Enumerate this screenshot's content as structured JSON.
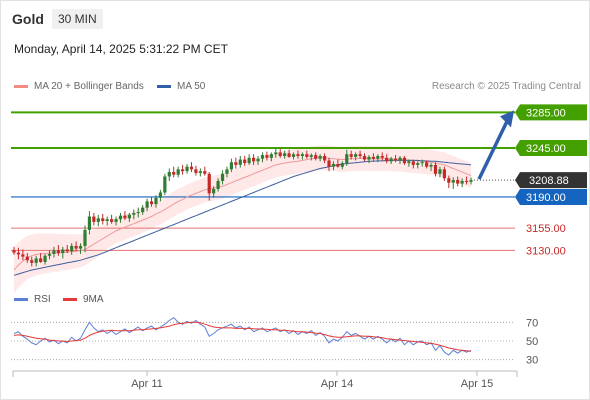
{
  "header": {
    "instrument": "Gold",
    "timeframe": "30 MIN",
    "datetime": "Monday, April 14, 2025 5:31:22 PM CET"
  },
  "legend": {
    "ma20_bollinger": "MA 20 + Bollinger Bands",
    "ma50": "MA 50",
    "credit": "Research © 2025 Trading Central"
  },
  "rsi_legend": {
    "rsi": "RSI",
    "ma9": "9MA"
  },
  "colors": {
    "up_candle": "#2f7d32",
    "down_candle": "#c62828",
    "green_level": "#43a000",
    "blue_level": "#1565c0",
    "red_level": "#e57373",
    "ma20": "#ef9a9a",
    "ma50": "#3f5f9e",
    "band_fill": "#fde0e0",
    "rsi": "#5b7fd6",
    "rsi_ma": "#e53935",
    "arrow": "#2e5fa8"
  },
  "chart_data": {
    "type": "candlestick",
    "instrument": "Gold",
    "timeframe": "30 MIN",
    "x_labels": [
      "Apr 11",
      "Apr 14",
      "Apr 15"
    ],
    "price_ylim": [
      3090,
      3300
    ],
    "current_price": {
      "value": 3208.88,
      "label": "3208.88"
    },
    "levels": [
      {
        "value": 3285.0,
        "label": "3285.00",
        "kind": "resistance"
      },
      {
        "value": 3245.0,
        "label": "3245.00",
        "kind": "resistance"
      },
      {
        "value": 3190.0,
        "label": "3190.00",
        "kind": "pivot"
      },
      {
        "value": 3155.0,
        "label": "3155.00",
        "kind": "support"
      },
      {
        "value": 3130.0,
        "label": "3130.00",
        "kind": "support"
      }
    ],
    "projection": {
      "from": 3208.88,
      "to": 3285.0,
      "direction": "up"
    },
    "ohlc": [
      [
        3130.0,
        3134.0,
        3125.0,
        3127.5
      ],
      [
        3127.5,
        3133.0,
        3120.0,
        3125.5
      ],
      [
        3125.5,
        3131.0,
        3119.0,
        3123.0
      ],
      [
        3123.0,
        3127.0,
        3116.0,
        3119.0
      ],
      [
        3119.0,
        3123.0,
        3112.0,
        3116.0
      ],
      [
        3116.0,
        3124.0,
        3112.0,
        3121.0
      ],
      [
        3121.0,
        3127.0,
        3116.0,
        3117.0
      ],
      [
        3117.0,
        3126.0,
        3114.0,
        3124.0
      ],
      [
        3124.0,
        3130.0,
        3120.0,
        3126.0
      ],
      [
        3126.0,
        3134.0,
        3122.0,
        3130.0
      ],
      [
        3130.0,
        3136.0,
        3124.0,
        3127.0
      ],
      [
        3127.0,
        3134.0,
        3121.0,
        3131.0
      ],
      [
        3131.0,
        3136.0,
        3127.0,
        3129.0
      ],
      [
        3129.0,
        3138.0,
        3125.0,
        3135.0
      ],
      [
        3135.0,
        3140.0,
        3129.0,
        3132.0
      ],
      [
        3132.0,
        3138.0,
        3126.0,
        3135.0
      ],
      [
        3135.0,
        3158.0,
        3128.0,
        3153.0
      ],
      [
        3153.0,
        3174.0,
        3148.0,
        3168.0
      ],
      [
        3168.0,
        3172.0,
        3158.0,
        3162.0
      ],
      [
        3162.0,
        3170.0,
        3157.0,
        3166.0
      ],
      [
        3166.0,
        3171.0,
        3159.0,
        3163.0
      ],
      [
        3163.0,
        3168.0,
        3158.0,
        3165.0
      ],
      [
        3165.0,
        3170.0,
        3160.0,
        3162.0
      ],
      [
        3162.0,
        3168.0,
        3158.0,
        3165.0
      ],
      [
        3165.0,
        3172.0,
        3161.0,
        3169.0
      ],
      [
        3169.0,
        3174.0,
        3164.0,
        3166.0
      ],
      [
        3166.0,
        3172.0,
        3162.0,
        3170.0
      ],
      [
        3170.0,
        3176.0,
        3165.0,
        3172.0
      ],
      [
        3172.0,
        3178.0,
        3167.0,
        3173.0
      ],
      [
        3173.0,
        3181.0,
        3170.0,
        3178.0
      ],
      [
        3178.0,
        3188.0,
        3174.0,
        3185.0
      ],
      [
        3185.0,
        3190.0,
        3179.0,
        3182.0
      ],
      [
        3182.0,
        3192.0,
        3178.0,
        3189.0
      ],
      [
        3189.0,
        3198.0,
        3185.0,
        3195.0
      ],
      [
        3195.0,
        3216.0,
        3192.0,
        3213.0
      ],
      [
        3213.0,
        3222.0,
        3208.0,
        3218.0
      ],
      [
        3218.0,
        3224.0,
        3212.0,
        3215.0
      ],
      [
        3215.0,
        3224.0,
        3212.0,
        3221.0
      ],
      [
        3221.0,
        3226.0,
        3215.0,
        3219.0
      ],
      [
        3219.0,
        3227.0,
        3216.0,
        3224.0
      ],
      [
        3224.0,
        3229.0,
        3218.0,
        3221.0
      ],
      [
        3221.0,
        3225.0,
        3214.0,
        3217.0
      ],
      [
        3217.0,
        3222.0,
        3213.0,
        3219.0
      ],
      [
        3219.0,
        3224.0,
        3214.0,
        3216.0
      ],
      [
        3216.0,
        3218.0,
        3186.0,
        3194.0
      ],
      [
        3194.0,
        3202.0,
        3189.0,
        3199.0
      ],
      [
        3199.0,
        3211.0,
        3196.0,
        3208.0
      ],
      [
        3208.0,
        3220.0,
        3204.0,
        3216.0
      ],
      [
        3216.0,
        3224.0,
        3212.0,
        3221.0
      ],
      [
        3221.0,
        3233.0,
        3218.0,
        3229.0
      ],
      [
        3229.0,
        3234.0,
        3222.0,
        3226.0
      ],
      [
        3226.0,
        3236.0,
        3223.0,
        3232.0
      ],
      [
        3232.0,
        3236.0,
        3225.0,
        3228.0
      ],
      [
        3228.0,
        3238.0,
        3226.0,
        3234.0
      ],
      [
        3234.0,
        3238.0,
        3226.0,
        3230.0
      ],
      [
        3230.0,
        3236.0,
        3226.0,
        3233.0
      ],
      [
        3233.0,
        3240.0,
        3229.0,
        3237.0
      ],
      [
        3237.0,
        3241.0,
        3231.0,
        3234.0
      ],
      [
        3234.0,
        3240.0,
        3230.0,
        3238.0
      ],
      [
        3238.0,
        3244.0,
        3234.0,
        3240.0
      ],
      [
        3240.0,
        3244.0,
        3234.0,
        3236.0
      ],
      [
        3236.0,
        3242.0,
        3233.0,
        3239.0
      ],
      [
        3239.0,
        3243.0,
        3234.0,
        3235.0
      ],
      [
        3235.0,
        3240.0,
        3232.0,
        3238.0
      ],
      [
        3238.0,
        3242.0,
        3233.0,
        3236.0
      ],
      [
        3236.0,
        3240.0,
        3232.0,
        3238.0
      ],
      [
        3238.0,
        3242.0,
        3233.0,
        3235.0
      ],
      [
        3235.0,
        3239.0,
        3231.0,
        3237.0
      ],
      [
        3237.0,
        3240.0,
        3231.0,
        3233.0
      ],
      [
        3233.0,
        3238.0,
        3230.0,
        3236.0
      ],
      [
        3236.0,
        3239.0,
        3228.0,
        3231.0
      ],
      [
        3231.0,
        3234.0,
        3219.0,
        3224.0
      ],
      [
        3224.0,
        3230.0,
        3220.0,
        3227.0
      ],
      [
        3227.0,
        3232.0,
        3223.0,
        3224.0
      ],
      [
        3224.0,
        3230.0,
        3221.0,
        3228.0
      ],
      [
        3228.0,
        3243.0,
        3225.0,
        3238.0
      ],
      [
        3238.0,
        3242.0,
        3232.0,
        3235.0
      ],
      [
        3235.0,
        3240.0,
        3231.0,
        3238.0
      ],
      [
        3238.0,
        3242.0,
        3233.0,
        3236.0
      ],
      [
        3236.0,
        3239.0,
        3230.0,
        3232.0
      ],
      [
        3232.0,
        3237.0,
        3228.0,
        3235.0
      ],
      [
        3235.0,
        3239.0,
        3230.0,
        3233.0
      ],
      [
        3233.0,
        3238.0,
        3229.0,
        3236.0
      ],
      [
        3236.0,
        3240.0,
        3231.0,
        3234.0
      ],
      [
        3234.0,
        3238.0,
        3228.0,
        3230.0
      ],
      [
        3230.0,
        3235.0,
        3227.0,
        3233.0
      ],
      [
        3233.0,
        3237.0,
        3229.0,
        3231.0
      ],
      [
        3231.0,
        3236.0,
        3227.0,
        3234.0
      ],
      [
        3234.0,
        3236.0,
        3226.0,
        3228.0
      ],
      [
        3228.0,
        3232.0,
        3224.0,
        3230.0
      ],
      [
        3230.0,
        3232.0,
        3222.0,
        3226.0
      ],
      [
        3226.0,
        3230.0,
        3222.0,
        3228.0
      ],
      [
        3228.0,
        3232.0,
        3224.0,
        3229.0
      ],
      [
        3229.0,
        3231.0,
        3222.0,
        3224.0
      ],
      [
        3224.0,
        3228.0,
        3219.0,
        3226.0
      ],
      [
        3226.0,
        3229.0,
        3213.0,
        3216.0
      ],
      [
        3216.0,
        3224.0,
        3212.0,
        3221.0
      ],
      [
        3221.0,
        3224.0,
        3208.0,
        3211.0
      ],
      [
        3211.0,
        3214.0,
        3200.0,
        3206.0
      ],
      [
        3206.0,
        3212.0,
        3199.0,
        3209.0
      ],
      [
        3209.0,
        3213.0,
        3202.0,
        3205.0
      ],
      [
        3205.0,
        3211.0,
        3201.0,
        3208.0
      ],
      [
        3208.0,
        3213.0,
        3204.0,
        3207.0
      ],
      [
        3207.0,
        3212.0,
        3204.0,
        3208.88
      ]
    ],
    "ma20": [
      3108.0,
      3113.5,
      3118.0,
      3122.0,
      3124.0,
      3125.5,
      3126.0,
      3126.5,
      3127.0,
      3127.5,
      3127.0,
      3128.0,
      3128.0,
      3128.5,
      3129.0,
      3129.5,
      3131.0,
      3134.0,
      3137.0,
      3140.0,
      3143.0,
      3146.0,
      3149.0,
      3152.0,
      3154.0,
      3156.0,
      3158.0,
      3160.0,
      3162.0,
      3164.0,
      3166.0,
      3168.0,
      3171.0,
      3173.0,
      3176.0,
      3179.0,
      3182.0,
      3185.0,
      3187.0,
      3190.0,
      3192.0,
      3194.0,
      3196.0,
      3198.0,
      3199.0,
      3200.0,
      3201.0,
      3202.0,
      3204.0,
      3206.0,
      3208.0,
      3210.0,
      3212.0,
      3214.0,
      3216.0,
      3218.0,
      3220.0,
      3222.0,
      3224.0,
      3226.0,
      3227.0,
      3228.0,
      3229.0,
      3229.5,
      3230.0,
      3231.0,
      3232.0,
      3233.0,
      3233.5,
      3234.0,
      3234.0,
      3233.5,
      3233.0,
      3232.5,
      3232.0,
      3232.5,
      3233.0,
      3233.0,
      3233.5,
      3233.5,
      3233.0,
      3233.0,
      3233.0,
      3233.0,
      3233.0,
      3233.0,
      3232.5,
      3232.5,
      3232.0,
      3231.5,
      3231.0,
      3230.5,
      3230.0,
      3229.5,
      3229.0,
      3228.0,
      3227.0,
      3226.0,
      3224.0,
      3222.0,
      3220.0,
      3218.0,
      3216.0,
      3214.0
    ],
    "ma50": [
      3102.0,
      3103.5,
      3105.0,
      3106.5,
      3108.0,
      3109.0,
      3110.0,
      3111.0,
      3112.0,
      3113.0,
      3114.0,
      3115.0,
      3116.0,
      3117.0,
      3118.0,
      3119.0,
      3120.5,
      3122.0,
      3123.5,
      3125.0,
      3127.0,
      3129.0,
      3131.0,
      3133.0,
      3135.0,
      3137.0,
      3139.0,
      3141.0,
      3143.0,
      3145.0,
      3147.0,
      3149.0,
      3151.0,
      3153.0,
      3155.0,
      3157.0,
      3159.0,
      3161.0,
      3163.0,
      3165.0,
      3167.0,
      3169.0,
      3171.0,
      3173.0,
      3175.0,
      3177.0,
      3179.0,
      3181.0,
      3183.0,
      3185.0,
      3187.0,
      3189.0,
      3191.0,
      3193.0,
      3195.0,
      3197.0,
      3199.0,
      3201.0,
      3203.0,
      3205.0,
      3207.0,
      3209.0,
      3211.0,
      3213.0,
      3214.5,
      3216.0,
      3217.5,
      3219.0,
      3220.5,
      3222.0,
      3223.0,
      3224.0,
      3225.0,
      3226.0,
      3227.0,
      3227.5,
      3228.0,
      3228.5,
      3229.0,
      3229.5,
      3230.0,
      3230.0,
      3230.5,
      3230.5,
      3231.0,
      3231.0,
      3231.0,
      3231.0,
      3231.0,
      3231.0,
      3231.0,
      3231.0,
      3230.5,
      3230.5,
      3230.0,
      3230.0,
      3229.5,
      3229.0,
      3228.5,
      3228.0,
      3227.5,
      3227.0,
      3226.5,
      3226.0
    ],
    "rsi": {
      "levels": [
        70,
        50,
        30
      ],
      "ylim": [
        20,
        80
      ],
      "rsi": [
        58,
        60,
        55,
        52,
        48,
        46,
        50,
        53,
        49,
        51,
        47,
        50,
        48,
        54,
        50,
        53,
        62,
        70,
        64,
        60,
        62,
        58,
        61,
        57,
        60,
        63,
        59,
        62,
        65,
        61,
        64,
        66,
        62,
        65,
        68,
        72,
        75,
        70,
        68,
        71,
        69,
        72,
        68,
        65,
        55,
        58,
        62,
        64,
        66,
        68,
        64,
        66,
        62,
        65,
        60,
        62,
        64,
        60,
        62,
        64,
        60,
        62,
        58,
        61,
        57,
        60,
        58,
        61,
        56,
        59,
        55,
        48,
        52,
        50,
        54,
        60,
        56,
        58,
        55,
        52,
        55,
        52,
        55,
        52,
        48,
        52,
        49,
        53,
        46,
        50,
        46,
        49,
        50,
        46,
        48,
        40,
        45,
        38,
        35,
        40,
        37,
        40,
        38,
        40
      ],
      "ma9": [
        56,
        56.5,
        56,
        55,
        54,
        53,
        52.5,
        52,
        51,
        50.5,
        50,
        50,
        49.5,
        50,
        50.5,
        51,
        53,
        56,
        58,
        59.5,
        60.5,
        61,
        61.5,
        61,
        61,
        61,
        61,
        61.5,
        62,
        62,
        62.5,
        63,
        63.5,
        64,
        65,
        66,
        67.5,
        68.5,
        69,
        69.5,
        70,
        70,
        69.5,
        68,
        66.5,
        65,
        64.5,
        64,
        64,
        64,
        63.5,
        63.5,
        63.5,
        63.5,
        63,
        63,
        62.5,
        62.5,
        62,
        62,
        61.5,
        61.5,
        61,
        60.5,
        60,
        60,
        59.5,
        59,
        58.5,
        58,
        57,
        55.5,
        54.5,
        54,
        54,
        54.5,
        55,
        55.5,
        55.5,
        55,
        55,
        54.5,
        54,
        53.5,
        52.5,
        52,
        51.5,
        51,
        50.5,
        50,
        49.5,
        49,
        48.5,
        48,
        47.5,
        46.5,
        45.5,
        44,
        42.5,
        41.5,
        40.5,
        40,
        39.5,
        39
      ]
    }
  }
}
